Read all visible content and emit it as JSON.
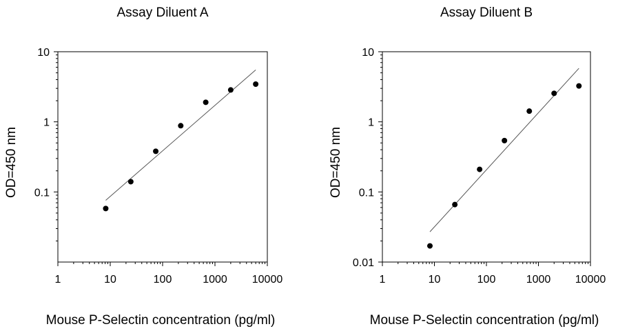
{
  "chart_data": [
    {
      "type": "scatter",
      "title": "Assay Diluent A",
      "xlabel": "Mouse P-Selectin concentration (pg/ml)",
      "ylabel": "OD=450 nm",
      "x_scale": "log",
      "y_scale": "log",
      "xlim": [
        1,
        10000
      ],
      "ylim": [
        0.01,
        10
      ],
      "x_ticks": [
        "1",
        "10",
        "100",
        "1000",
        "10000"
      ],
      "y_ticks": [
        "0.1",
        "1",
        "10"
      ],
      "grid": false,
      "points": {
        "x": [
          8.2,
          24.7,
          74,
          222,
          667,
          2000,
          6000
        ],
        "y": [
          0.058,
          0.14,
          0.38,
          0.88,
          1.9,
          2.85,
          3.45
        ]
      },
      "fit_line": {
        "x": [
          8.2,
          6000
        ],
        "y": [
          0.076,
          5.5
        ]
      }
    },
    {
      "type": "scatter",
      "title": "Assay Diluent B",
      "xlabel": "Mouse P-Selectin concentration (pg/ml)",
      "ylabel": "OD=450 nm",
      "x_scale": "log",
      "y_scale": "log",
      "xlim": [
        1,
        10000
      ],
      "ylim": [
        0.01,
        10
      ],
      "x_ticks": [
        "1",
        "10",
        "100",
        "1000",
        "10000"
      ],
      "y_ticks": [
        "0.01",
        "0.1",
        "1",
        "10"
      ],
      "grid": false,
      "points": {
        "x": [
          8.2,
          24.7,
          74,
          222,
          667,
          2000,
          6000
        ],
        "y": [
          0.017,
          0.066,
          0.21,
          0.54,
          1.42,
          2.55,
          3.25
        ]
      },
      "fit_line": {
        "x": [
          8.2,
          6000
        ],
        "y": [
          0.027,
          5.8
        ]
      }
    }
  ]
}
